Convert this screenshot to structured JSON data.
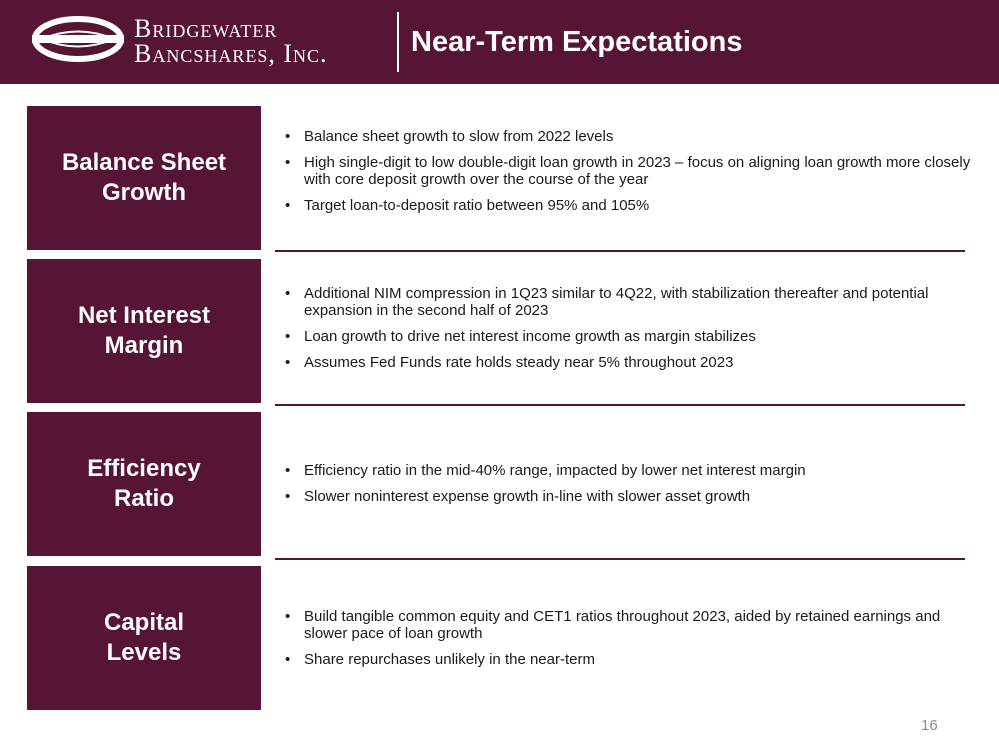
{
  "header": {
    "logo_line1": "Bridgewater",
    "logo_line2": "Bancshares, Inc.",
    "title": "Near-Term Expectations"
  },
  "colors": {
    "brand": "#561534",
    "text": "#1a1a1a",
    "background": "#ffffff"
  },
  "sections": [
    {
      "label": "Balance Sheet\nGrowth",
      "bullets": [
        "Balance sheet growth to slow from 2022 levels",
        "High single-digit to low double-digit loan growth in 2023 – focus on aligning loan growth more closely with core deposit growth over the course of the year",
        "Target loan-to-deposit ratio between 95% and 105%"
      ]
    },
    {
      "label": "Net Interest\nMargin",
      "bullets": [
        "Additional NIM compression in 1Q23 similar to 4Q22, with stabilization thereafter and potential expansion in the second half of 2023",
        "Loan growth to drive net interest income growth as margin stabilizes",
        "Assumes Fed Funds rate holds steady near 5% throughout 2023"
      ]
    },
    {
      "label": "Efficiency\nRatio",
      "bullets": [
        "Efficiency ratio in the mid-40% range, impacted by lower net interest margin",
        "Slower noninterest expense growth in-line with slower asset growth"
      ]
    },
    {
      "label": "Capital\nLevels",
      "bullets": [
        "Build tangible common equity and CET1 ratios throughout 2023, aided by retained earnings and slower pace of loan growth",
        "Share repurchases unlikely in the near-term"
      ]
    }
  ],
  "page_number": "16"
}
